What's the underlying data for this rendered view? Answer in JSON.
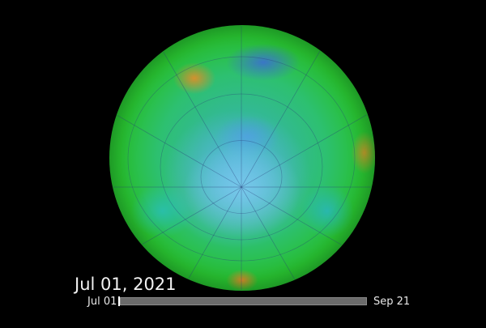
{
  "visualization": {
    "current_date": "Jul 01, 2021",
    "colors": {
      "low": "#3c6ed2",
      "mid": "#2dc070",
      "high": "#e68c28",
      "background": "#000000"
    }
  },
  "timeline": {
    "start_label": "Jul 01",
    "end_label": "Sep 21",
    "progress_percent": 0
  }
}
